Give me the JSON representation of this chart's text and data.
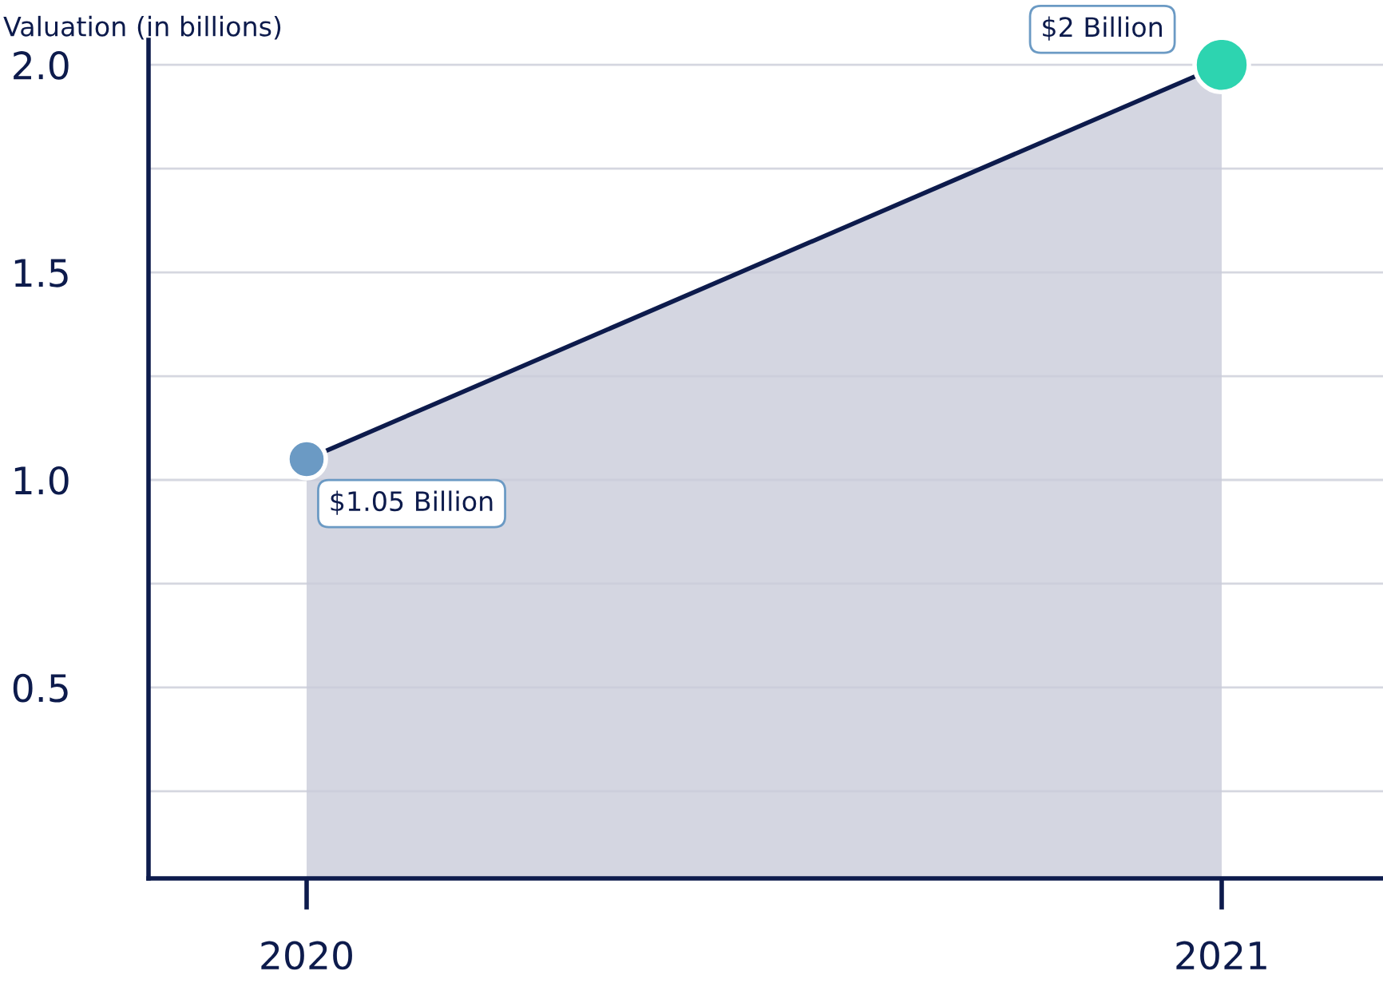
{
  "chart_data": {
    "type": "area",
    "ylabel": "Valuation (in billions)",
    "categories": [
      "2020",
      "2021"
    ],
    "series": [
      {
        "color": "#0d1b4c",
        "values": [
          1.05,
          2.0
        ],
        "colors": [
          "#6b9ac4",
          "#2dd4b0"
        ],
        "value_labels": [
          "$1.05 Billion",
          "$2 Billion"
        ]
      }
    ],
    "ylim": [
      0.04,
      2.06
    ],
    "yticks": [
      {
        "value": 0.25,
        "label": null
      },
      0.5,
      {
        "value": 0.75,
        "label": null
      },
      {
        "value": 1.0,
        "label": "1.0"
      },
      {
        "value": 1.25,
        "label": null
      },
      1.5,
      {
        "value": 1.75,
        "label": null
      },
      {
        "value": 2.0,
        "label": "2.0"
      }
    ],
    "grid": "y",
    "marker": "circle",
    "line_style": "solid"
  }
}
